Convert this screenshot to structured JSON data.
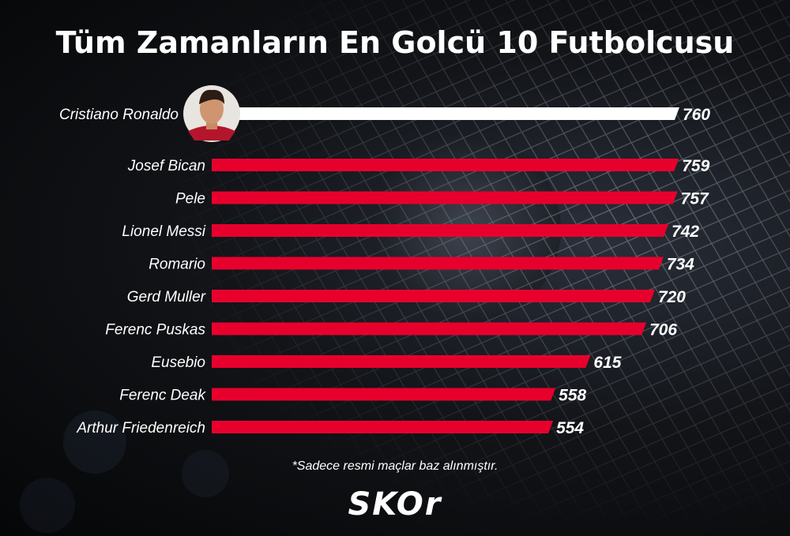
{
  "title": "Tüm Zamanların En Golcü 10 Futbolcusu",
  "footnote": "*Sadece resmi maçlar baz alınmıştır.",
  "logo": "SKOr",
  "colors": {
    "highlight_bar": "#ffffff",
    "bar": "#e8002d",
    "text": "#ffffff"
  },
  "chart_data": {
    "type": "bar",
    "orientation": "horizontal",
    "categories": [
      "Cristiano Ronaldo",
      "Josef Bican",
      "Pele",
      "Lionel Messi",
      "Romario",
      "Gerd Muller",
      "Ferenc Puskas",
      "Eusebio",
      "Ferenc Deak",
      "Arthur Friedenreich"
    ],
    "values": [
      760,
      759,
      757,
      742,
      734,
      720,
      706,
      615,
      558,
      554
    ],
    "highlight_index": 0,
    "highlight_icon": "player-photo",
    "xlim": [
      0,
      760
    ],
    "grid": false,
    "legend": "none"
  }
}
